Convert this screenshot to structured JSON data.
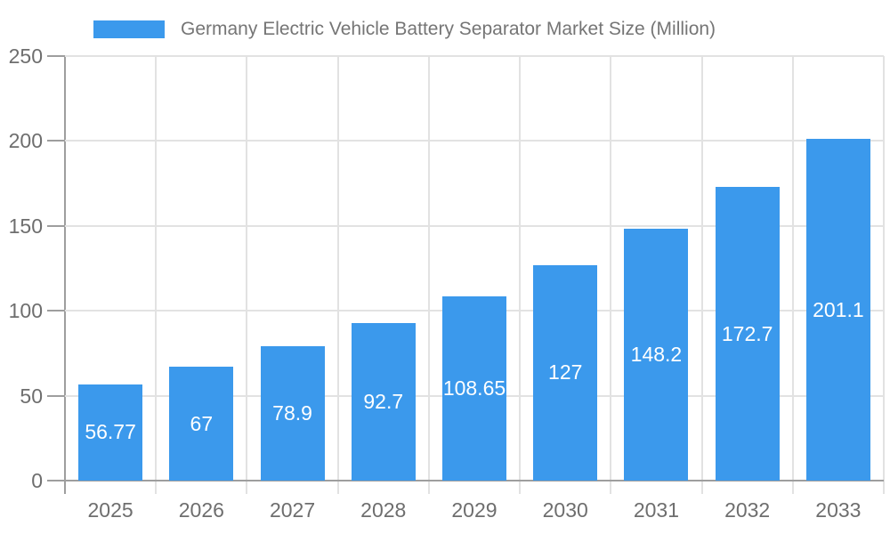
{
  "chart_data": {
    "type": "bar",
    "title": "Germany Electric Vehicle Battery Separator Market Size (Million)",
    "categories": [
      "2025",
      "2026",
      "2027",
      "2028",
      "2029",
      "2030",
      "2031",
      "2032",
      "2033"
    ],
    "values": [
      56.77,
      67,
      78.9,
      92.7,
      108.65,
      127,
      148.2,
      172.7,
      201.1
    ],
    "value_labels": [
      "56.77",
      "67",
      "78.9",
      "92.7",
      "108.65",
      "127",
      "148.2",
      "172.7",
      "201.1"
    ],
    "xlabel": "",
    "ylabel": "",
    "ylim": [
      0,
      250
    ],
    "yticks": [
      0,
      50,
      100,
      150,
      200,
      250
    ],
    "grid": "on",
    "legend_position": "top",
    "colors": {
      "bar": "#3b99ec",
      "grid": "#e2e2e2",
      "axis": "#9e9e9e",
      "tick_text": "#6e6e6e",
      "legend_text": "#757575",
      "bar_value_text": "#ffffff"
    }
  }
}
